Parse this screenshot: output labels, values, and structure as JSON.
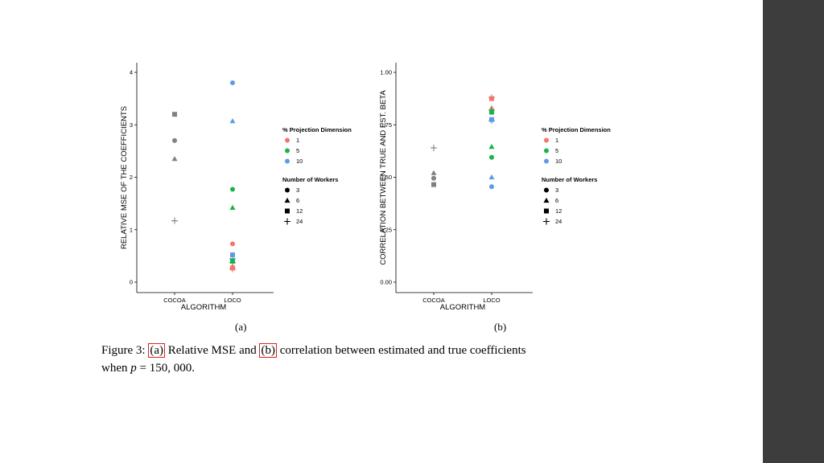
{
  "figure": {
    "sublabel_a": "(a)",
    "sublabel_b": "(b)",
    "caption_prefix": "Figure 3:",
    "caption_ref_a": "(a)",
    "caption_mid1": "Relative MSE and",
    "caption_ref_b": "(b)",
    "caption_mid2": "correlation between estimated and true coefficients",
    "caption_when": "when",
    "caption_var": "p",
    "caption_rest": "= 150, 000."
  },
  "colors": {
    "1": "#f0766e",
    "5": "#19b34a",
    "10": "#5e9be3",
    "none": "#808080"
  },
  "legend": {
    "dim_title": "% Projection Dimension",
    "dims": [
      "1",
      "5",
      "10"
    ],
    "workers_title": "Number of Workers",
    "workers": [
      "3",
      "6",
      "12",
      "24"
    ],
    "shapes": [
      "circle",
      "triangle",
      "square",
      "plus"
    ]
  },
  "chart_data": [
    {
      "type": "scatter",
      "xlabel": "ALGORITHM",
      "ylabel": "RELATIVE MSE OF THE COEFFICIENTS",
      "categories": [
        "COCOA",
        "LOCO"
      ],
      "ylim": [
        0,
        4
      ],
      "yticks": [
        "0",
        "1",
        "2",
        "3",
        "4"
      ],
      "ytick_values": [
        0,
        1,
        2,
        3,
        4
      ],
      "points": [
        {
          "x": "COCOA",
          "y": 3.2,
          "workers": "12",
          "dim": "none"
        },
        {
          "x": "COCOA",
          "y": 2.7,
          "workers": "3",
          "dim": "none"
        },
        {
          "x": "COCOA",
          "y": 2.35,
          "workers": "6",
          "dim": "none"
        },
        {
          "x": "COCOA",
          "y": 1.17,
          "workers": "24",
          "dim": "none"
        },
        {
          "x": "LOCO",
          "y": 3.8,
          "workers": "3",
          "dim": "10"
        },
        {
          "x": "LOCO",
          "y": 3.07,
          "workers": "6",
          "dim": "10"
        },
        {
          "x": "LOCO",
          "y": 0.52,
          "workers": "12",
          "dim": "10"
        },
        {
          "x": "LOCO",
          "y": 0.45,
          "workers": "24",
          "dim": "10"
        },
        {
          "x": "LOCO",
          "y": 1.77,
          "workers": "3",
          "dim": "5"
        },
        {
          "x": "LOCO",
          "y": 1.42,
          "workers": "6",
          "dim": "5"
        },
        {
          "x": "LOCO",
          "y": 0.4,
          "workers": "12",
          "dim": "5"
        },
        {
          "x": "LOCO",
          "y": 0.37,
          "workers": "24",
          "dim": "5"
        },
        {
          "x": "LOCO",
          "y": 0.73,
          "workers": "3",
          "dim": "1"
        },
        {
          "x": "LOCO",
          "y": 0.3,
          "workers": "6",
          "dim": "1"
        },
        {
          "x": "LOCO",
          "y": 0.27,
          "workers": "12",
          "dim": "1"
        },
        {
          "x": "LOCO",
          "y": 0.25,
          "workers": "24",
          "dim": "1"
        }
      ]
    },
    {
      "type": "scatter",
      "xlabel": "ALGORITHM",
      "ylabel": "CORRELATION BETWEEN TRUE AND EST. BETA",
      "categories": [
        "COCOA",
        "LOCO"
      ],
      "ylim": [
        0,
        1
      ],
      "yticks": [
        "0.00",
        "0.25",
        "0.50",
        "0.75",
        "1.00"
      ],
      "ytick_values": [
        0,
        0.25,
        0.5,
        0.75,
        1
      ],
      "points": [
        {
          "x": "COCOA",
          "y": 0.64,
          "workers": "24",
          "dim": "none"
        },
        {
          "x": "COCOA",
          "y": 0.52,
          "workers": "6",
          "dim": "none"
        },
        {
          "x": "COCOA",
          "y": 0.495,
          "workers": "3",
          "dim": "none"
        },
        {
          "x": "COCOA",
          "y": 0.465,
          "workers": "12",
          "dim": "none"
        },
        {
          "x": "LOCO",
          "y": 0.88,
          "workers": "24",
          "dim": "1"
        },
        {
          "x": "LOCO",
          "y": 0.875,
          "workers": "12",
          "dim": "1"
        },
        {
          "x": "LOCO",
          "y": 0.83,
          "workers": "6",
          "dim": "1"
        },
        {
          "x": "LOCO",
          "y": 0.82,
          "workers": "3",
          "dim": "1"
        },
        {
          "x": "LOCO",
          "y": 0.81,
          "workers": "12",
          "dim": "5"
        },
        {
          "x": "LOCO",
          "y": 0.82,
          "workers": "24",
          "dim": "5"
        },
        {
          "x": "LOCO",
          "y": 0.645,
          "workers": "6",
          "dim": "5"
        },
        {
          "x": "LOCO",
          "y": 0.595,
          "workers": "3",
          "dim": "5"
        },
        {
          "x": "LOCO",
          "y": 0.775,
          "workers": "12",
          "dim": "10"
        },
        {
          "x": "LOCO",
          "y": 0.77,
          "workers": "24",
          "dim": "10"
        },
        {
          "x": "LOCO",
          "y": 0.5,
          "workers": "6",
          "dim": "10"
        },
        {
          "x": "LOCO",
          "y": 0.455,
          "workers": "3",
          "dim": "10"
        }
      ]
    }
  ]
}
